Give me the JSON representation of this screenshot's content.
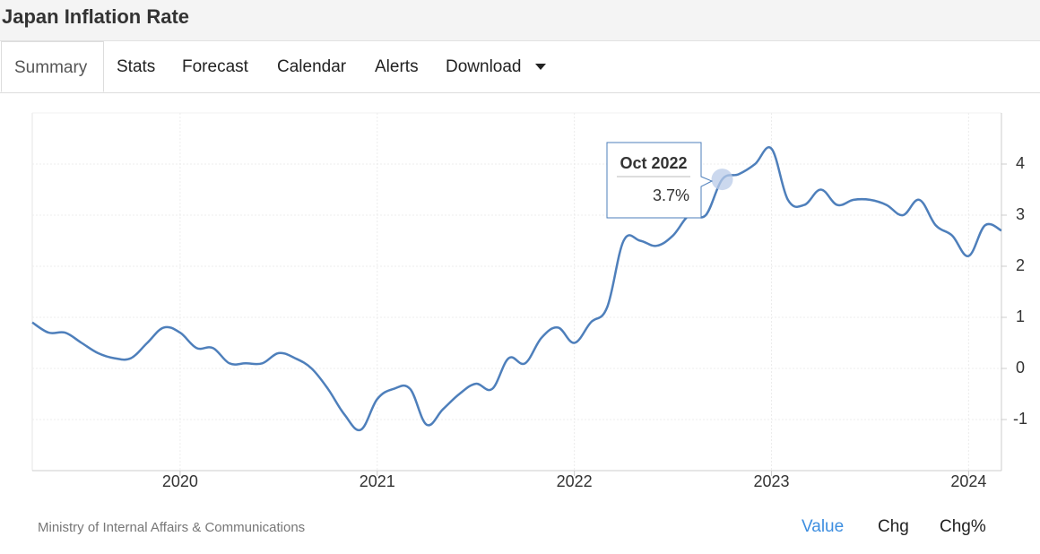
{
  "header": {
    "title": "Japan Inflation Rate"
  },
  "tabs": [
    "Summary",
    "Stats",
    "Forecast",
    "Calendar",
    "Alerts",
    "Download"
  ],
  "footer": {
    "source": "Ministry of Internal Affairs & Communications",
    "switches": [
      "Value",
      "Chg",
      "Chg%"
    ]
  },
  "chart_data": {
    "type": "line",
    "x": [
      "2019-04",
      "2019-05",
      "2019-06",
      "2019-07",
      "2019-08",
      "2019-09",
      "2019-10",
      "2019-11",
      "2019-12",
      "2020-01",
      "2020-02",
      "2020-03",
      "2020-04",
      "2020-05",
      "2020-06",
      "2020-07",
      "2020-08",
      "2020-09",
      "2020-10",
      "2020-11",
      "2020-12",
      "2021-01",
      "2021-02",
      "2021-03",
      "2021-04",
      "2021-05",
      "2021-06",
      "2021-07",
      "2021-08",
      "2021-09",
      "2021-10",
      "2021-11",
      "2021-12",
      "2022-01",
      "2022-02",
      "2022-03",
      "2022-04",
      "2022-05",
      "2022-06",
      "2022-07",
      "2022-08",
      "2022-09",
      "2022-10",
      "2022-11",
      "2022-12",
      "2023-01",
      "2023-02",
      "2023-03",
      "2023-04",
      "2023-05",
      "2023-06",
      "2023-07",
      "2023-08",
      "2023-09",
      "2023-10",
      "2023-11",
      "2023-12",
      "2024-01",
      "2024-02",
      "2024-03"
    ],
    "series": [
      {
        "name": "Value",
        "color": "#4e7fbb",
        "values": [
          0.9,
          0.7,
          0.7,
          0.5,
          0.3,
          0.2,
          0.2,
          0.5,
          0.8,
          0.7,
          0.4,
          0.4,
          0.1,
          0.1,
          0.1,
          0.3,
          0.2,
          0.0,
          -0.4,
          -0.9,
          -1.2,
          -0.6,
          -0.4,
          -0.4,
          -1.1,
          -0.8,
          -0.5,
          -0.3,
          -0.4,
          0.2,
          0.1,
          0.6,
          0.8,
          0.5,
          0.9,
          1.2,
          2.5,
          2.5,
          2.4,
          2.6,
          3.0,
          3.0,
          3.7,
          3.8,
          4.0,
          4.3,
          3.3,
          3.2,
          3.5,
          3.2,
          3.3,
          3.3,
          3.2,
          3.0,
          3.3,
          2.8,
          2.6,
          2.2,
          2.8,
          2.7
        ]
      }
    ],
    "xlim": [
      "2019-04",
      "2024-03"
    ],
    "xticks": [
      {
        "value": "2020-01",
        "label": "2020"
      },
      {
        "value": "2021-01",
        "label": "2021"
      },
      {
        "value": "2022-01",
        "label": "2022"
      },
      {
        "value": "2023-01",
        "label": "2023"
      },
      {
        "value": "2024-01",
        "label": "2024"
      }
    ],
    "ylim": [
      -2,
      5
    ],
    "yticks": [
      -1,
      0,
      1,
      2,
      3,
      4
    ],
    "grid": true,
    "tooltip": {
      "x": "2022-10",
      "title": "Oct 2022",
      "value_label": "3.7%"
    }
  }
}
